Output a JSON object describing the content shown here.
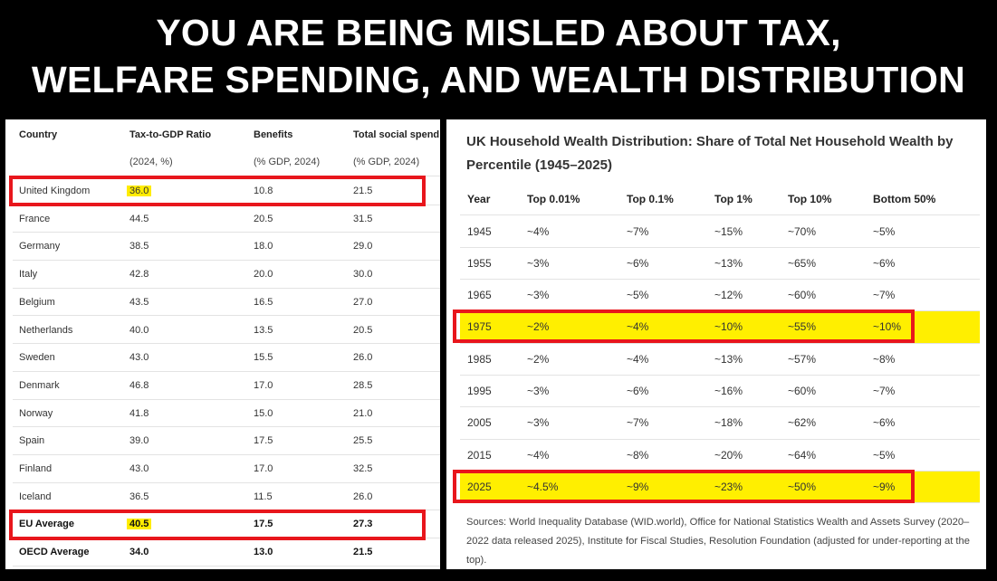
{
  "headline": {
    "line1": "YOU ARE BEING MISLED ABOUT TAX,",
    "line2": "WELFARE SPENDING, AND WEALTH DISTRIBUTION"
  },
  "left_table": {
    "headers": [
      "Country",
      "Tax-to-GDP Ratio",
      "Benefits",
      "Total social spend"
    ],
    "subheaders": [
      "",
      "(2024, %)",
      "(% GDP, 2024)",
      "(% GDP, 2024)"
    ],
    "rows": [
      [
        "United Kingdom",
        "36.0",
        "10.8",
        "21.5"
      ],
      [
        "France",
        "44.5",
        "20.5",
        "31.5"
      ],
      [
        "Germany",
        "38.5",
        "18.0",
        "29.0"
      ],
      [
        "Italy",
        "42.8",
        "20.0",
        "30.0"
      ],
      [
        "Belgium",
        "43.5",
        "16.5",
        "27.0"
      ],
      [
        "Netherlands",
        "40.0",
        "13.5",
        "20.5"
      ],
      [
        "Sweden",
        "43.0",
        "15.5",
        "26.0"
      ],
      [
        "Denmark",
        "46.8",
        "17.0",
        "28.5"
      ],
      [
        "Norway",
        "41.8",
        "15.0",
        "21.0"
      ],
      [
        "Spain",
        "39.0",
        "17.5",
        "25.5"
      ],
      [
        "Finland",
        "43.0",
        "17.0",
        "32.5"
      ],
      [
        "Iceland",
        "36.5",
        "11.5",
        "26.0"
      ],
      [
        "EU Average",
        "40.5",
        "17.5",
        "27.3"
      ],
      [
        "OECD Average",
        "34.0",
        "13.0",
        "21.5"
      ]
    ]
  },
  "right_table": {
    "title": "UK Household Wealth Distribution: Share of Total Net Household Wealth by Percentile (1945–2025)",
    "headers": [
      "Year",
      "Top 0.01%",
      "Top 0.1%",
      "Top 1%",
      "Top 10%",
      "Bottom 50%"
    ],
    "rows": [
      [
        "1945",
        "~4%",
        "~7%",
        "~15%",
        "~70%",
        "~5%"
      ],
      [
        "1955",
        "~3%",
        "~6%",
        "~13%",
        "~65%",
        "~6%"
      ],
      [
        "1965",
        "~3%",
        "~5%",
        "~12%",
        "~60%",
        "~7%"
      ],
      [
        "1975",
        "~2%",
        "~4%",
        "~10%",
        "~55%",
        "~10%"
      ],
      [
        "1985",
        "~2%",
        "~4%",
        "~13%",
        "~57%",
        "~8%"
      ],
      [
        "1995",
        "~3%",
        "~6%",
        "~16%",
        "~60%",
        "~7%"
      ],
      [
        "2005",
        "~3%",
        "~7%",
        "~18%",
        "~62%",
        "~6%"
      ],
      [
        "2015",
        "~4%",
        "~8%",
        "~20%",
        "~64%",
        "~5%"
      ],
      [
        "2025",
        "~4.5%",
        "~9%",
        "~23%",
        "~50%",
        "~9%"
      ]
    ],
    "sources": "Sources: World Inequality Database (WID.world), Office for National Statistics Wealth and Assets Survey (2020–2022 data released 2025), Institute for Fiscal Studies, Resolution Foundation (adjusted for under-reporting at the top)."
  },
  "colors": {
    "highlight": "#ffec00",
    "box": "#e8161c"
  }
}
